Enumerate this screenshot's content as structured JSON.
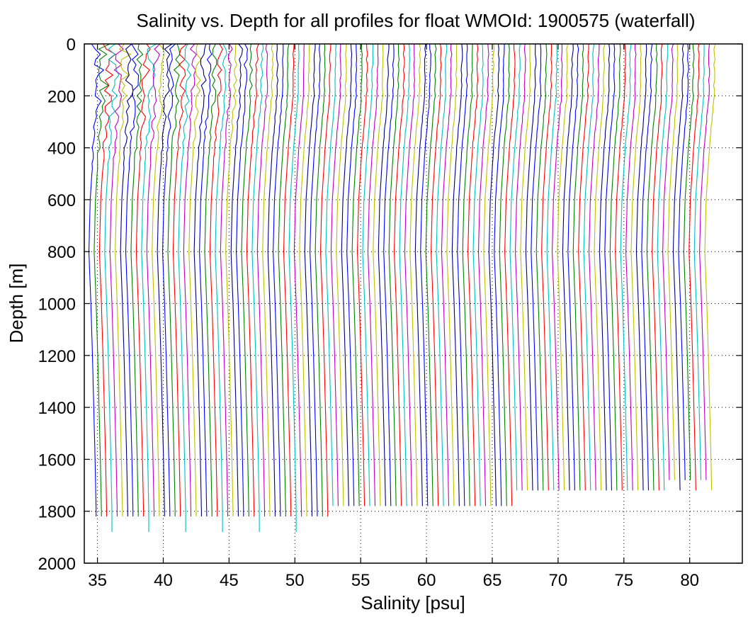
{
  "chart_data": {
    "type": "line",
    "title": "Salinity vs. Depth for all profiles for float WMOId: 1900575 (waterfall)",
    "xlabel": "Salinity [psu]",
    "ylabel": "Depth [m]",
    "xlim": [
      34,
      84
    ],
    "ylim": [
      0,
      2000
    ],
    "y_reversed": true,
    "xticks": [
      35,
      40,
      45,
      50,
      55,
      60,
      65,
      70,
      75,
      80
    ],
    "yticks": [
      0,
      200,
      400,
      600,
      800,
      1000,
      1200,
      1400,
      1600,
      1800,
      2000
    ],
    "grid": true,
    "grid_style": "dotted",
    "series_colors": [
      "#0000ff",
      "#008000",
      "#ff0000",
      "#00bfbf",
      "#bf00bf",
      "#bfbf00",
      "#000080"
    ],
    "waterfall": {
      "profile_count": 118,
      "first_profile_surface_salinity": 35.1,
      "offset_per_profile_psu": 0.4,
      "representative_profile": [
        {
          "depth": 0,
          "salinity": 35.1
        },
        {
          "depth": 200,
          "salinity": 35.05
        },
        {
          "depth": 400,
          "salinity": 34.7
        },
        {
          "depth": 600,
          "salinity": 34.45
        },
        {
          "depth": 800,
          "salinity": 34.35
        },
        {
          "depth": 1000,
          "salinity": 34.5
        },
        {
          "depth": 1200,
          "salinity": 34.62
        },
        {
          "depth": 1400,
          "salinity": 34.72
        },
        {
          "depth": 1600,
          "salinity": 34.82
        },
        {
          "depth": 1800,
          "salinity": 34.9
        }
      ],
      "profile_max_depths": {
        "shallow_start_index": 108,
        "deep_group_depths": [
          1830,
          1880
        ],
        "mid_group_depth": 1780,
        "late_group_depths": [
          1730,
          1680
        ]
      }
    }
  }
}
